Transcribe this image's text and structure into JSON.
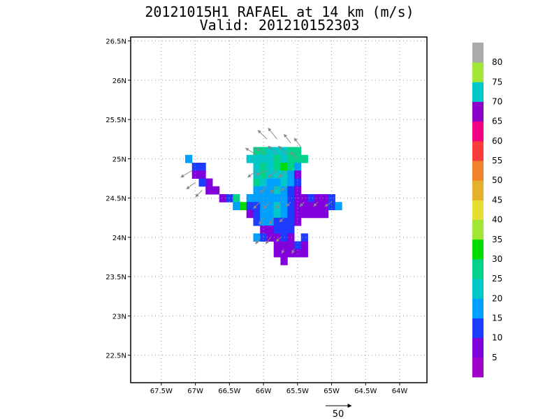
{
  "title": "20121015H1 RAFAEL at 14 km (m/s)",
  "subtitle": "Valid: 201210152303",
  "chart_data": {
    "type": "heatmap",
    "title": "20121015H1 RAFAEL at 14 km (m/s)",
    "subtitle": "Valid: 201210152303",
    "xlim": [
      -67.95,
      -63.6
    ],
    "ylim": [
      22.15,
      26.55
    ],
    "x_ticks": [
      {
        "value": -67.5,
        "label": "67.5W"
      },
      {
        "value": -67.0,
        "label": "67W"
      },
      {
        "value": -66.5,
        "label": "66.5W"
      },
      {
        "value": -66.0,
        "label": "66W"
      },
      {
        "value": -65.5,
        "label": "65.5W"
      },
      {
        "value": -65.0,
        "label": "65W"
      },
      {
        "value": -64.5,
        "label": "64.5W"
      },
      {
        "value": -64.0,
        "label": "64W"
      }
    ],
    "y_ticks": [
      {
        "value": 22.5,
        "label": "22.5N"
      },
      {
        "value": 23.0,
        "label": "23N"
      },
      {
        "value": 23.5,
        "label": "23.5N"
      },
      {
        "value": 24.0,
        "label": "24N"
      },
      {
        "value": 24.5,
        "label": "24.5N"
      },
      {
        "value": 25.0,
        "label": "25N"
      },
      {
        "value": 25.5,
        "label": "25.5N"
      },
      {
        "value": 26.0,
        "label": "26N"
      },
      {
        "value": 26.5,
        "label": "26.5N"
      }
    ],
    "grid": true,
    "colorbar": {
      "bounds": [
        0,
        5,
        10,
        15,
        20,
        25,
        30,
        35,
        40,
        45,
        50,
        55,
        60,
        65,
        70,
        75,
        80,
        85
      ],
      "labels": [
        "5",
        "10",
        "15",
        "20",
        "25",
        "30",
        "35",
        "40",
        "45",
        "50",
        "55",
        "60",
        "65",
        "70",
        "75",
        "80"
      ],
      "colors": [
        "#a000c8",
        "#8200dc",
        "#1e3cff",
        "#00a0ff",
        "#00c8c8",
        "#00d28c",
        "#00dc00",
        "#a0e632",
        "#e6dc32",
        "#e6af2d",
        "#f08228",
        "#fa3c3c",
        "#f00082",
        "#8c00c8",
        "#00c8c8",
        "#a0e632",
        "#aaaaaa"
      ]
    },
    "cell_size_deg": 0.1,
    "cells": [
      [
        -67.1,
        25.0,
        15
      ],
      [
        -67.0,
        24.9,
        10
      ],
      [
        -66.9,
        24.9,
        10
      ],
      [
        -67.0,
        24.8,
        5
      ],
      [
        -66.9,
        24.8,
        5
      ],
      [
        -66.8,
        24.7,
        5
      ],
      [
        -66.9,
        24.7,
        10
      ],
      [
        -66.8,
        24.6,
        5
      ],
      [
        -66.7,
        24.6,
        5
      ],
      [
        -66.6,
        24.5,
        5
      ],
      [
        -66.5,
        24.5,
        10
      ],
      [
        -66.4,
        24.5,
        25
      ],
      [
        -66.3,
        24.4,
        30
      ],
      [
        -66.4,
        24.4,
        15
      ],
      [
        -66.1,
        25.1,
        25
      ],
      [
        -66.0,
        25.1,
        25
      ],
      [
        -65.9,
        25.1,
        20
      ],
      [
        -65.8,
        25.1,
        20
      ],
      [
        -65.7,
        25.1,
        20
      ],
      [
        -65.6,
        25.1,
        25
      ],
      [
        -65.5,
        25.1,
        25
      ],
      [
        -66.2,
        25.0,
        20
      ],
      [
        -66.1,
        25.0,
        20
      ],
      [
        -66.0,
        25.0,
        20
      ],
      [
        -65.9,
        25.0,
        20
      ],
      [
        -65.8,
        25.0,
        25
      ],
      [
        -65.7,
        25.0,
        20
      ],
      [
        -65.6,
        25.0,
        25
      ],
      [
        -65.5,
        25.0,
        25
      ],
      [
        -65.4,
        25.0,
        25
      ],
      [
        -66.1,
        24.9,
        20
      ],
      [
        -66.0,
        24.9,
        25
      ],
      [
        -65.9,
        24.9,
        20
      ],
      [
        -65.8,
        24.9,
        25
      ],
      [
        -65.7,
        24.9,
        30
      ],
      [
        -65.6,
        24.9,
        25
      ],
      [
        -65.5,
        24.9,
        15
      ],
      [
        -66.1,
        24.8,
        20
      ],
      [
        -66.0,
        24.8,
        25
      ],
      [
        -65.9,
        24.8,
        20
      ],
      [
        -65.8,
        24.8,
        20
      ],
      [
        -65.7,
        24.8,
        20
      ],
      [
        -65.6,
        24.8,
        15
      ],
      [
        -65.5,
        24.8,
        5
      ],
      [
        -66.1,
        24.7,
        25
      ],
      [
        -66.0,
        24.7,
        20
      ],
      [
        -65.9,
        24.7,
        15
      ],
      [
        -65.8,
        24.7,
        15
      ],
      [
        -65.7,
        24.7,
        20
      ],
      [
        -65.6,
        24.7,
        15
      ],
      [
        -65.5,
        24.7,
        10
      ],
      [
        -66.1,
        24.6,
        15
      ],
      [
        -66.0,
        24.6,
        15
      ],
      [
        -65.9,
        24.6,
        15
      ],
      [
        -65.8,
        24.6,
        20
      ],
      [
        -65.7,
        24.6,
        15
      ],
      [
        -65.6,
        24.6,
        10
      ],
      [
        -65.5,
        24.6,
        5
      ],
      [
        -66.2,
        24.5,
        15
      ],
      [
        -66.1,
        24.5,
        15
      ],
      [
        -66.0,
        24.5,
        15
      ],
      [
        -65.9,
        24.5,
        15
      ],
      [
        -65.8,
        24.5,
        15
      ],
      [
        -65.7,
        24.5,
        15
      ],
      [
        -65.6,
        24.5,
        10
      ],
      [
        -65.5,
        24.5,
        5
      ],
      [
        -65.4,
        24.5,
        5
      ],
      [
        -65.3,
        24.5,
        10
      ],
      [
        -65.2,
        24.5,
        5
      ],
      [
        -65.1,
        24.5,
        5
      ],
      [
        -65.0,
        24.5,
        10
      ],
      [
        -66.2,
        24.4,
        10
      ],
      [
        -66.1,
        24.4,
        10
      ],
      [
        -66.0,
        24.4,
        15
      ],
      [
        -65.9,
        24.4,
        15
      ],
      [
        -65.8,
        24.4,
        20
      ],
      [
        -65.7,
        24.4,
        15
      ],
      [
        -65.6,
        24.4,
        10
      ],
      [
        -65.5,
        24.4,
        5
      ],
      [
        -65.4,
        24.4,
        5
      ],
      [
        -65.3,
        24.4,
        5
      ],
      [
        -65.2,
        24.4,
        5
      ],
      [
        -65.1,
        24.4,
        5
      ],
      [
        -65.0,
        24.4,
        10
      ],
      [
        -64.9,
        24.4,
        15
      ],
      [
        -66.2,
        24.3,
        5
      ],
      [
        -66.1,
        24.3,
        10
      ],
      [
        -66.0,
        24.3,
        15
      ],
      [
        -65.9,
        24.3,
        15
      ],
      [
        -65.8,
        24.3,
        20
      ],
      [
        -65.7,
        24.3,
        15
      ],
      [
        -65.6,
        24.3,
        10
      ],
      [
        -65.5,
        24.3,
        5
      ],
      [
        -65.4,
        24.3,
        5
      ],
      [
        -65.3,
        24.3,
        5
      ],
      [
        -65.2,
        24.3,
        5
      ],
      [
        -65.1,
        24.3,
        5
      ],
      [
        -66.1,
        24.2,
        10
      ],
      [
        -66.0,
        24.2,
        15
      ],
      [
        -65.9,
        24.2,
        15
      ],
      [
        -65.8,
        24.2,
        10
      ],
      [
        -65.7,
        24.2,
        10
      ],
      [
        -65.6,
        24.2,
        10
      ],
      [
        -65.5,
        24.2,
        5
      ],
      [
        -66.0,
        24.1,
        5
      ],
      [
        -65.9,
        24.1,
        5
      ],
      [
        -65.8,
        24.1,
        10
      ],
      [
        -65.7,
        24.1,
        10
      ],
      [
        -65.6,
        24.1,
        10
      ],
      [
        -66.1,
        24.0,
        15
      ],
      [
        -66.0,
        24.0,
        10
      ],
      [
        -65.9,
        24.0,
        5
      ],
      [
        -65.8,
        24.0,
        5
      ],
      [
        -65.7,
        24.0,
        10
      ],
      [
        -65.6,
        24.0,
        5
      ],
      [
        -65.4,
        24.0,
        10
      ],
      [
        -65.8,
        23.9,
        5
      ],
      [
        -65.7,
        23.9,
        5
      ],
      [
        -65.6,
        23.9,
        5
      ],
      [
        -65.5,
        23.9,
        10
      ],
      [
        -65.4,
        23.9,
        5
      ],
      [
        -65.8,
        23.8,
        5
      ],
      [
        -65.7,
        23.8,
        5
      ],
      [
        -65.6,
        23.8,
        5
      ],
      [
        -65.5,
        23.8,
        5
      ],
      [
        -65.4,
        23.8,
        5
      ],
      [
        -65.7,
        23.7,
        5
      ]
    ],
    "vectors": [
      [
        -67.05,
        24.85,
        -5,
        -3
      ],
      [
        -67.0,
        24.7,
        -4,
        -3
      ],
      [
        -66.9,
        24.6,
        -3,
        -3
      ],
      [
        -65.95,
        25.25,
        -4,
        4
      ],
      [
        -65.8,
        25.25,
        -4,
        5
      ],
      [
        -65.6,
        25.2,
        -3,
        4
      ],
      [
        -65.45,
        25.15,
        -3,
        4
      ],
      [
        -66.1,
        25.05,
        -5,
        3
      ],
      [
        -65.95,
        25.05,
        -5,
        3
      ],
      [
        -65.8,
        25.05,
        -4,
        4
      ],
      [
        -65.65,
        25.05,
        -4,
        4
      ],
      [
        -65.5,
        25.0,
        -3,
        3
      ],
      [
        -66.1,
        24.85,
        -4,
        -3
      ],
      [
        -65.95,
        24.85,
        -5,
        -2
      ],
      [
        -65.8,
        24.85,
        -4,
        -3
      ],
      [
        -65.65,
        24.85,
        -4,
        -3
      ],
      [
        -65.95,
        24.65,
        -3,
        -3
      ],
      [
        -65.8,
        24.65,
        -3,
        -3
      ],
      [
        -65.65,
        24.65,
        -3,
        -2
      ],
      [
        -66.05,
        24.45,
        -3,
        -3
      ],
      [
        -65.9,
        24.45,
        -3,
        -3
      ],
      [
        -65.75,
        24.45,
        -2,
        -3
      ],
      [
        -65.6,
        24.45,
        -2,
        -2
      ],
      [
        -65.4,
        24.45,
        -2,
        -2
      ],
      [
        -65.2,
        24.45,
        -2,
        -2
      ],
      [
        -65.0,
        24.45,
        -3,
        -2
      ],
      [
        -66.0,
        24.25,
        -2,
        -3
      ],
      [
        -65.85,
        24.25,
        -2,
        -3
      ],
      [
        -65.7,
        24.25,
        -2,
        -2
      ],
      [
        -66.05,
        24.0,
        -2,
        -3
      ],
      [
        -65.9,
        24.0,
        -2,
        -3
      ],
      [
        -65.75,
        24.0,
        -2,
        -2
      ],
      [
        -65.7,
        23.85,
        -1,
        -2
      ],
      [
        -65.55,
        23.85,
        -1,
        -2
      ]
    ],
    "reference_vector": {
      "value": 50,
      "label": "50"
    }
  }
}
